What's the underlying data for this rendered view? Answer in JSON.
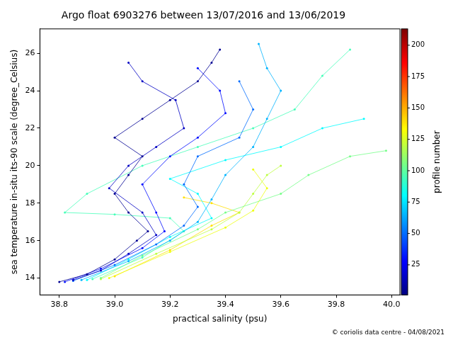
{
  "chart_data": {
    "type": "scatter",
    "title": "Argo float 6903276 between 13/07/2016 and 13/06/2019",
    "x_label": "practical salinity (psu)",
    "y_label": "sea temperature in-situ its-90 scale (degree_Celsius)",
    "footer": "© coriolis data centre - 04/08/2021",
    "xlim": [
      38.73,
      40.03
    ],
    "xticks": [
      38.8,
      {
        "value": 39,
        "label": "39.0"
      },
      39.2,
      39.4,
      39.6,
      39.8,
      {
        "value": 40,
        "label": "40.0"
      }
    ],
    "ylim": [
      13.1,
      27.3
    ],
    "yticks": [
      14,
      16,
      18,
      20,
      22,
      24,
      26
    ],
    "grid": false,
    "marker": "circle",
    "line_style": "solid",
    "colorbar": {
      "label": "profile number",
      "range": [
        1,
        213
      ],
      "ticks": [
        25,
        50,
        75,
        100,
        125,
        150,
        175,
        200
      ]
    },
    "series": [
      {
        "profile": 5,
        "x": [
          38.8,
          38.9,
          39.0,
          39.08,
          39.12,
          39.05,
          39.0,
          39.05,
          39.1,
          39.0,
          39.1,
          39.2,
          39.3,
          39.35,
          39.38
        ],
        "y": [
          13.8,
          14.2,
          15.0,
          16.0,
          16.5,
          17.5,
          18.5,
          19.5,
          20.5,
          21.5,
          22.5,
          23.5,
          24.5,
          25.5,
          26.2
        ]
      },
      {
        "profile": 15,
        "x": [
          38.85,
          38.95,
          39.05,
          39.15,
          39.1,
          38.98,
          39.05,
          39.15,
          39.25,
          39.22,
          39.1,
          39.05
        ],
        "y": [
          13.9,
          14.4,
          15.3,
          16.3,
          17.5,
          18.8,
          20.0,
          21.0,
          22.0,
          23.5,
          24.5,
          25.5
        ]
      },
      {
        "profile": 30,
        "x": [
          38.82,
          38.95,
          39.1,
          39.18,
          39.15,
          39.1,
          39.2,
          39.3,
          39.4,
          39.38,
          39.3
        ],
        "y": [
          13.8,
          14.5,
          15.6,
          16.5,
          17.5,
          19.0,
          20.5,
          21.5,
          22.8,
          24.0,
          25.2
        ]
      },
      {
        "profile": 50,
        "x": [
          38.85,
          39.0,
          39.15,
          39.25,
          39.3,
          39.25,
          39.3,
          39.45,
          39.5,
          39.45
        ],
        "y": [
          13.85,
          14.7,
          15.8,
          16.8,
          17.8,
          19.0,
          20.5,
          21.5,
          23.0,
          24.5
        ]
      },
      {
        "profile": 65,
        "x": [
          38.88,
          39.05,
          39.2,
          39.3,
          39.35,
          39.4,
          39.5,
          39.55,
          39.6,
          39.55,
          39.52
        ],
        "y": [
          13.9,
          14.9,
          16.0,
          17.0,
          18.2,
          19.5,
          21.0,
          22.5,
          24.0,
          25.2,
          26.5
        ]
      },
      {
        "profile": 80,
        "x": [
          38.9,
          39.05,
          39.2,
          39.35,
          39.3,
          39.2,
          39.4,
          39.6,
          39.75,
          39.9
        ],
        "y": [
          13.9,
          15.0,
          16.2,
          17.2,
          18.5,
          19.3,
          20.3,
          21.0,
          22.0,
          22.5
        ]
      },
      {
        "profile": 95,
        "x": [
          38.92,
          39.1,
          39.25,
          39.2,
          39.0,
          38.82,
          38.9,
          39.1,
          39.3,
          39.5,
          39.65,
          39.75,
          39.85
        ],
        "y": [
          13.95,
          15.1,
          16.5,
          17.2,
          17.4,
          17.5,
          18.5,
          20.0,
          21.0,
          22.0,
          23.0,
          24.8,
          26.2
        ]
      },
      {
        "profile": 105,
        "x": [
          38.95,
          39.1,
          39.3,
          39.4,
          39.6,
          39.7,
          39.85,
          39.98
        ],
        "y": [
          14.0,
          15.2,
          16.6,
          17.5,
          18.5,
          19.5,
          20.5,
          20.8
        ]
      },
      {
        "profile": 120,
        "x": [
          38.95,
          39.15,
          39.35,
          39.45,
          39.5,
          39.55,
          39.6
        ],
        "y": [
          13.95,
          15.3,
          16.6,
          17.5,
          18.5,
          19.5,
          20.0
        ]
      },
      {
        "profile": 130,
        "x": [
          38.98,
          39.2,
          39.4,
          39.5,
          39.55,
          39.5
        ],
        "y": [
          14.0,
          15.4,
          16.7,
          17.6,
          18.8,
          19.8
        ]
      },
      {
        "profile": 140,
        "x": [
          39.0,
          39.2,
          39.35,
          39.45,
          39.35,
          39.25
        ],
        "y": [
          14.1,
          15.5,
          16.8,
          17.5,
          18.0,
          18.3
        ]
      }
    ]
  }
}
